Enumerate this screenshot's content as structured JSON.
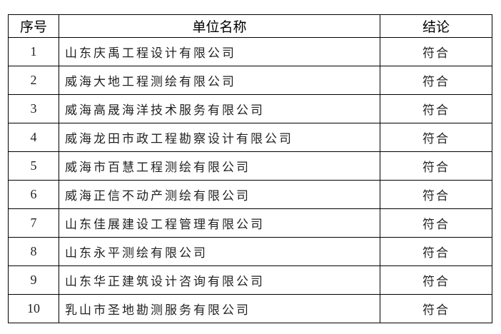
{
  "headers": {
    "index": "序号",
    "name": "单位名称",
    "result": "结论"
  },
  "rows": [
    {
      "index": "1",
      "name": "山东庆禹工程设计有限公司",
      "result": "符合"
    },
    {
      "index": "2",
      "name": "威海大地工程测绘有限公司",
      "result": "符合"
    },
    {
      "index": "3",
      "name": "威海高晟海洋技术服务有限公司",
      "result": "符合"
    },
    {
      "index": "4",
      "name": "威海龙田市政工程勘察设计有限公司",
      "result": "符合"
    },
    {
      "index": "5",
      "name": "威海市百慧工程测绘有限公司",
      "result": "符合"
    },
    {
      "index": "6",
      "name": "威海正信不动产测绘有限公司",
      "result": "符合"
    },
    {
      "index": "7",
      "name": "山东佳展建设工程管理有限公司",
      "result": "符合"
    },
    {
      "index": "8",
      "name": "山东永平测绘有限公司",
      "result": "符合"
    },
    {
      "index": "9",
      "name": "山东华正建筑设计咨询有限公司",
      "result": "符合"
    },
    {
      "index": "10",
      "name": "乳山市圣地勘测服务有限公司",
      "result": "符合"
    }
  ]
}
